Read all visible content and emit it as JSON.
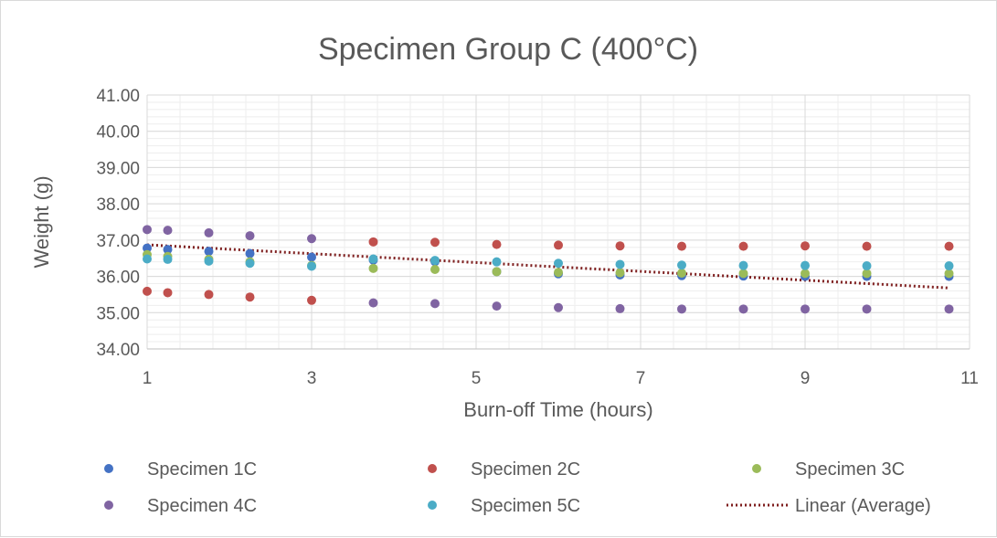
{
  "chart_data": {
    "type": "scatter",
    "title": "Specimen Group C (400°C)",
    "xlabel": "Burn-off Time (hours)",
    "ylabel": "Weight (g)",
    "xlim": [
      1,
      11
    ],
    "ylim": [
      34,
      41
    ],
    "x_ticks": [
      1,
      3,
      5,
      7,
      9,
      11
    ],
    "y_ticks": [
      "34.00",
      "35.00",
      "36.00",
      "37.00",
      "38.00",
      "39.00",
      "40.00",
      "41.00"
    ],
    "grid": true,
    "legend_position": "bottom",
    "x": [
      1,
      1.25,
      1.75,
      2.25,
      3,
      3.75,
      4.5,
      5.25,
      6,
      6.75,
      7.5,
      8.25,
      9,
      9.75,
      10.75
    ],
    "series": [
      {
        "name": "Specimen 1C",
        "color": "#4472c4",
        "values": [
          36.78,
          36.74,
          36.69,
          36.63,
          36.53,
          36.45,
          36.41,
          36.13,
          36.07,
          36.04,
          36.02,
          36.01,
          36.0,
          36.0,
          36.0
        ]
      },
      {
        "name": "Specimen 2C",
        "color": "#c0504d",
        "values": [
          35.59,
          35.55,
          35.5,
          35.43,
          35.34,
          36.95,
          36.94,
          36.88,
          36.86,
          36.84,
          36.83,
          36.83,
          36.84,
          36.83,
          36.83
        ]
      },
      {
        "name": "Specimen 3C",
        "color": "#9bbb59",
        "values": [
          36.6,
          36.55,
          36.47,
          36.4,
          36.3,
          36.22,
          36.19,
          36.13,
          36.11,
          36.1,
          36.09,
          36.08,
          36.08,
          36.08,
          36.08
        ]
      },
      {
        "name": "Specimen 4C",
        "color": "#8064a2",
        "values": [
          37.29,
          37.27,
          37.2,
          37.12,
          37.04,
          35.27,
          35.25,
          35.18,
          35.14,
          35.11,
          35.1,
          35.1,
          35.1,
          35.1,
          35.1
        ]
      },
      {
        "name": "Specimen 5C",
        "color": "#4bacc6",
        "values": [
          36.48,
          36.47,
          36.42,
          36.36,
          36.28,
          36.48,
          36.44,
          36.4,
          36.36,
          36.33,
          36.31,
          36.3,
          36.3,
          36.29,
          36.29
        ]
      }
    ],
    "trendline": {
      "name": "Linear (Average)",
      "color": "#7f2020",
      "x": [
        1,
        10.75
      ],
      "values": [
        36.87,
        35.68
      ]
    }
  }
}
